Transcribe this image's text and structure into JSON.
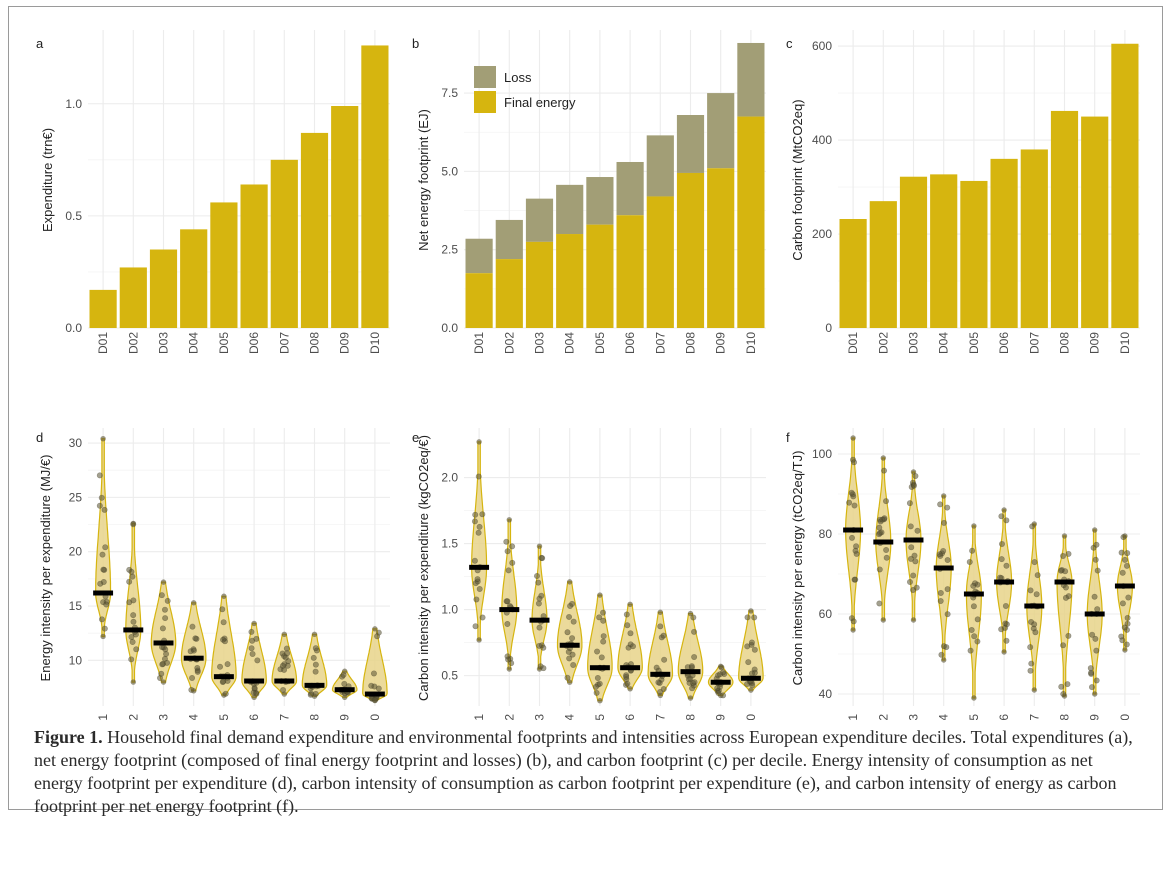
{
  "colors": {
    "bar": "#d6b50f",
    "loss": "#a29e76",
    "violin_fill": "#e8d48a",
    "violin_line": "#d6b50f",
    "point": "#5a5434",
    "median": "#000000",
    "grid": "#ececec",
    "axis_text": "#4d4d4d",
    "title_text": "#222222"
  },
  "caption": {
    "label": "Figure 1.",
    "text": "Household final demand expenditure and environmental footprints and intensities across European expenditure deciles. Total expenditures (a), net energy footprint (composed of final energy footprint and losses) (b), and carbon footprint (c) per decile. Energy intensity of consumption as net energy footprint per expenditure (d), carbon intensity of consumption as carbon footprint per expenditure (e), and carbon intensity of energy as carbon footprint per net energy footprint (f)."
  },
  "chart_data": [
    {
      "panel": "a",
      "type": "bar",
      "categories": [
        "D01",
        "D02",
        "D03",
        "D04",
        "D05",
        "D06",
        "D07",
        "D08",
        "D09",
        "D10"
      ],
      "values": [
        0.17,
        0.27,
        0.35,
        0.44,
        0.56,
        0.64,
        0.75,
        0.87,
        0.99,
        1.26
      ],
      "ylabel": "Expenditure (trn€)",
      "xlabel": "",
      "ylim": [
        0,
        1.32
      ],
      "yticks": [
        0.0,
        0.5,
        1.0
      ],
      "ytick_labels": [
        "0.0",
        "0.5",
        "1.0"
      ],
      "grid": true
    },
    {
      "panel": "b",
      "type": "bar",
      "stacked": true,
      "categories": [
        "D01",
        "D02",
        "D03",
        "D04",
        "D05",
        "D06",
        "D07",
        "D08",
        "D09",
        "D10"
      ],
      "series": [
        {
          "name": "Final energy",
          "values": [
            1.75,
            2.2,
            2.75,
            3.0,
            3.3,
            3.6,
            4.2,
            4.95,
            5.1,
            6.75
          ]
        },
        {
          "name": "Loss",
          "values": [
            1.1,
            1.25,
            1.38,
            1.57,
            1.52,
            1.7,
            1.95,
            1.85,
            2.4,
            2.35
          ]
        }
      ],
      "totals": [
        2.85,
        3.45,
        4.13,
        4.57,
        4.82,
        5.3,
        6.15,
        6.8,
        7.5,
        9.1
      ],
      "ylabel": "Net energy footprint (EJ)",
      "xlabel": "",
      "ylim": [
        0,
        9.45
      ],
      "yticks": [
        0.0,
        2.5,
        5.0,
        7.5
      ],
      "ytick_labels": [
        "0.0",
        "2.5",
        "5.0",
        "7.5"
      ],
      "legend_position": "top-left",
      "legend": [
        "Loss",
        "Final energy"
      ],
      "grid": true
    },
    {
      "panel": "c",
      "type": "bar",
      "categories": [
        "D01",
        "D02",
        "D03",
        "D04",
        "D05",
        "D06",
        "D07",
        "D08",
        "D09",
        "D10"
      ],
      "values": [
        232,
        270,
        322,
        327,
        313,
        360,
        380,
        462,
        450,
        605
      ],
      "ylabel": "Carbon footprint (MtCO2eq)",
      "xlabel": "",
      "ylim": [
        0,
        630
      ],
      "yticks": [
        0,
        200,
        400,
        600
      ],
      "ytick_labels": [
        "0",
        "200",
        "400",
        "600"
      ],
      "grid": true
    },
    {
      "panel": "d",
      "type": "violin",
      "categories": [
        "D01",
        "D02",
        "D03",
        "D04",
        "D05",
        "D06",
        "D07",
        "D08",
        "D09",
        "D10"
      ],
      "medians": [
        16.2,
        12.8,
        11.6,
        10.2,
        8.5,
        8.1,
        8.1,
        7.7,
        7.3,
        6.9
      ],
      "ranges": [
        [
          12.2,
          30.4
        ],
        [
          8.0,
          22.6
        ],
        [
          8.0,
          17.2
        ],
        [
          7.2,
          15.3
        ],
        [
          6.8,
          15.9
        ],
        [
          6.6,
          13.4
        ],
        [
          6.9,
          12.4
        ],
        [
          6.7,
          12.4
        ],
        [
          6.6,
          9.0
        ],
        [
          6.3,
          12.9
        ]
      ],
      "ylabel": "Energy intensity per expenditure (MJ/€)",
      "xlabel": "",
      "ylim": [
        5.8,
        31.2
      ],
      "yticks": [
        10,
        15,
        20,
        25,
        30
      ],
      "ytick_labels": [
        "10",
        "15",
        "20",
        "25",
        "30"
      ],
      "grid": true
    },
    {
      "panel": "e",
      "type": "violin",
      "categories": [
        "D01",
        "D02",
        "D03",
        "D04",
        "D05",
        "D06",
        "D07",
        "D08",
        "D09",
        "D10"
      ],
      "medians": [
        1.32,
        1.0,
        0.92,
        0.73,
        0.56,
        0.56,
        0.51,
        0.53,
        0.45,
        0.48
      ],
      "ranges": [
        [
          0.77,
          2.27
        ],
        [
          0.55,
          1.68
        ],
        [
          0.55,
          1.48
        ],
        [
          0.45,
          1.21
        ],
        [
          0.31,
          1.11
        ],
        [
          0.4,
          1.04
        ],
        [
          0.35,
          0.98
        ],
        [
          0.33,
          0.97
        ],
        [
          0.35,
          0.57
        ],
        [
          0.39,
          0.99
        ]
      ],
      "ylabel": "Carbon intensity per expenditure (kgCO2eq/€)",
      "xlabel": "",
      "ylim": [
        0.27,
        2.36
      ],
      "yticks": [
        0.5,
        1.0,
        1.5,
        2.0
      ],
      "ytick_labels": [
        "0.5",
        "1.0",
        "1.5",
        "2.0"
      ],
      "grid": true
    },
    {
      "panel": "f",
      "type": "violin",
      "categories": [
        "D01",
        "D02",
        "D03",
        "D04",
        "D05",
        "D06",
        "D07",
        "D08",
        "D09",
        "D10"
      ],
      "medians": [
        81,
        78,
        78.5,
        71.5,
        65,
        68,
        62,
        68,
        60,
        67
      ],
      "ranges": [
        [
          56,
          104
        ],
        [
          58.5,
          99
        ],
        [
          58.5,
          95.5
        ],
        [
          48.5,
          89.5
        ],
        [
          39,
          82
        ],
        [
          50.5,
          86
        ],
        [
          41,
          82.5
        ],
        [
          39.5,
          79.5
        ],
        [
          40,
          81
        ],
        [
          51,
          79.5
        ]
      ],
      "ylabel": "Carbon intensity per energy (tCO2eq/TJ)",
      "xlabel": "",
      "ylim": [
        37,
        106
      ],
      "yticks": [
        40,
        60,
        80,
        100
      ],
      "ytick_labels": [
        "40",
        "60",
        "80",
        "100"
      ],
      "grid": true
    }
  ]
}
